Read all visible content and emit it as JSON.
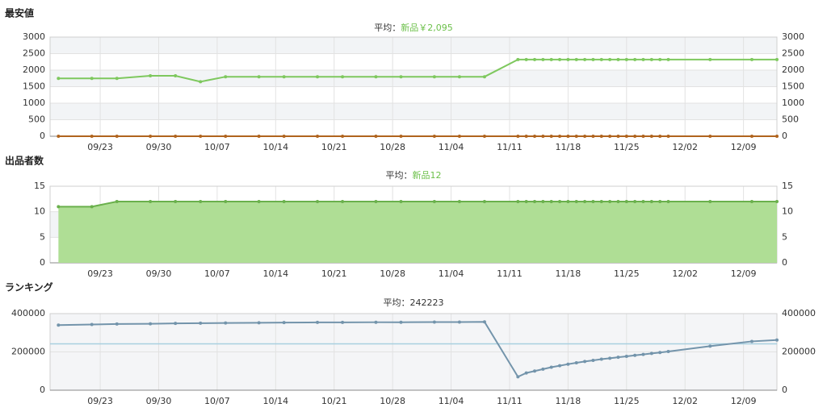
{
  "chart_data": [
    {
      "type": "line",
      "title": "最安値",
      "subtitle": [
        "平均：",
        "新品￥2,095"
      ],
      "subtitle_color": "#6cc04a",
      "x": [
        "09/18",
        "09/22",
        "09/25",
        "09/29",
        "10/02",
        "10/05",
        "10/08",
        "10/12",
        "10/15",
        "10/19",
        "10/22",
        "10/26",
        "10/29",
        "11/02",
        "11/05",
        "11/08",
        "11/12",
        "11/13",
        "11/14",
        "11/15",
        "11/16",
        "11/17",
        "11/18",
        "11/19",
        "11/20",
        "11/21",
        "11/22",
        "11/23",
        "11/24",
        "11/25",
        "11/26",
        "11/27",
        "11/28",
        "11/29",
        "11/30",
        "12/05",
        "12/10",
        "12/13"
      ],
      "xlim": [
        "09/17",
        "12/13"
      ],
      "xticks": [
        "09/23",
        "09/30",
        "10/07",
        "10/14",
        "10/21",
        "10/28",
        "11/04",
        "11/11",
        "11/18",
        "11/25",
        "12/02",
        "12/09"
      ],
      "ylim": [
        0,
        3000
      ],
      "yticks": [
        0,
        500,
        1000,
        1500,
        2000,
        2500,
        3000
      ],
      "grid": true,
      "series": [
        {
          "color": "#7ec85e",
          "values": [
            1750,
            1750,
            1750,
            1830,
            1830,
            1650,
            1800,
            1800,
            1800,
            1800,
            1800,
            1800,
            1800,
            1800,
            1800,
            1800,
            2320,
            2320,
            2320,
            2320,
            2320,
            2320,
            2320,
            2320,
            2320,
            2320,
            2320,
            2320,
            2320,
            2320,
            2320,
            2320,
            2320,
            2320,
            2320,
            2320,
            2320,
            2320
          ]
        },
        {
          "color": "#b0641e",
          "values": [
            0,
            0,
            0,
            0,
            0,
            0,
            0,
            0,
            0,
            0,
            0,
            0,
            0,
            0,
            0,
            0,
            0,
            0,
            0,
            0,
            0,
            0,
            0,
            0,
            0,
            0,
            0,
            0,
            0,
            0,
            0,
            0,
            0,
            0,
            0,
            0,
            0,
            0
          ]
        }
      ]
    },
    {
      "type": "area",
      "title": "出品者数",
      "subtitle": [
        "平均：",
        "新品12"
      ],
      "subtitle_color": "#6cc04a",
      "x": [
        "09/18",
        "09/22",
        "09/25",
        "09/29",
        "10/02",
        "10/05",
        "10/08",
        "10/12",
        "10/15",
        "10/19",
        "10/22",
        "10/26",
        "10/29",
        "11/02",
        "11/05",
        "11/08",
        "11/12",
        "11/13",
        "11/14",
        "11/15",
        "11/16",
        "11/17",
        "11/18",
        "11/19",
        "11/20",
        "11/21",
        "11/22",
        "11/23",
        "11/24",
        "11/25",
        "11/26",
        "11/27",
        "11/28",
        "11/29",
        "11/30",
        "12/05",
        "12/10",
        "12/13"
      ],
      "xlim": [
        "09/17",
        "12/13"
      ],
      "xticks": [
        "09/23",
        "09/30",
        "10/07",
        "10/14",
        "10/21",
        "10/28",
        "11/04",
        "11/11",
        "11/18",
        "11/25",
        "12/02",
        "12/09"
      ],
      "ylim": [
        0,
        15
      ],
      "yticks": [
        0,
        5,
        10,
        15
      ],
      "grid": true,
      "series": [
        {
          "color": "#6ab04c",
          "fill": "#afde95",
          "values": [
            11,
            11,
            12,
            12,
            12,
            12,
            12,
            12,
            12,
            12,
            12,
            12,
            12,
            12,
            12,
            12,
            12,
            12,
            12,
            12,
            12,
            12,
            12,
            12,
            12,
            12,
            12,
            12,
            12,
            12,
            12,
            12,
            12,
            12,
            12,
            12,
            12,
            12
          ]
        }
      ]
    },
    {
      "type": "line",
      "title": "ランキング",
      "subtitle": [
        "平均："
      ],
      "average": 242223,
      "average_color": "#a8cfe0",
      "x": [
        "09/18",
        "09/22",
        "09/25",
        "09/29",
        "10/02",
        "10/05",
        "10/08",
        "10/12",
        "10/15",
        "10/19",
        "10/22",
        "10/26",
        "10/29",
        "11/02",
        "11/05",
        "11/08",
        "11/12",
        "11/13",
        "11/14",
        "11/15",
        "11/16",
        "11/17",
        "11/18",
        "11/19",
        "11/20",
        "11/21",
        "11/22",
        "11/23",
        "11/24",
        "11/25",
        "11/26",
        "11/27",
        "11/28",
        "11/29",
        "11/30",
        "12/05",
        "12/10",
        "12/13"
      ],
      "xlim": [
        "09/17",
        "12/13"
      ],
      "xticks": [
        "09/23",
        "09/30",
        "10/07",
        "10/14",
        "10/21",
        "10/28",
        "11/04",
        "11/11",
        "11/18",
        "11/25",
        "12/02",
        "12/09"
      ],
      "ylim": [
        0,
        400000
      ],
      "yticks": [
        0,
        200000,
        400000
      ],
      "grid": true,
      "series": [
        {
          "color": "#7394ab",
          "values": [
            340000,
            343000,
            346000,
            347000,
            349000,
            350000,
            351000,
            352000,
            353000,
            354000,
            354000,
            355000,
            355000,
            356000,
            356000,
            357000,
            70000,
            90000,
            100000,
            110000,
            120000,
            128000,
            136000,
            143000,
            150000,
            156000,
            162000,
            167000,
            172000,
            177000,
            182000,
            187000,
            192000,
            197000,
            202000,
            230000,
            255000,
            262000
          ]
        }
      ]
    }
  ]
}
